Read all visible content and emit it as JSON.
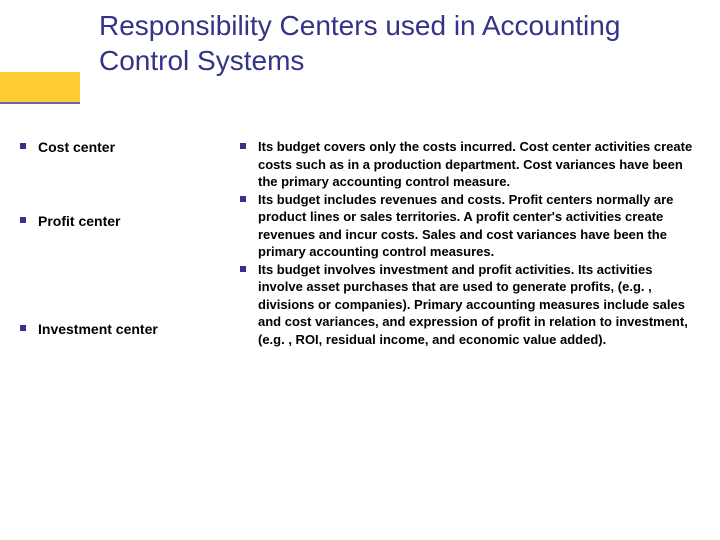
{
  "title": "Responsibility Centers used in Accounting Control Systems",
  "colors": {
    "title_color": "#333388",
    "bullet_color": "#333388",
    "accent_fill": "#ffcc33",
    "accent_underline": "#6666aa",
    "body_text": "#000000",
    "background": "#ffffff"
  },
  "typography": {
    "title_fontsize": 28,
    "left_label_fontsize": 14,
    "right_text_fontsize": 13,
    "body_weight": "bold"
  },
  "left_items": [
    {
      "label": "Cost center"
    },
    {
      "label": "Profit center"
    },
    {
      "label": "Investment center"
    }
  ],
  "right_items": [
    {
      "text": "Its budget covers only the costs incurred. Cost center activities create costs such as in a production department. Cost variances have been the primary accounting control measure."
    },
    {
      "text": "Its budget includes revenues and costs. Profit centers normally are product lines or sales territories. A profit center's activities create revenues and incur costs. Sales and cost variances have been the primary accounting control measures."
    },
    {
      "text": "Its budget involves investment and profit activities. Its activities involve asset purchases that are used to generate profits, (e.g. , divisions or companies). Primary accounting measures include sales and cost variances, and expression of profit in relation to investment, (e.g. , ROI, residual income, and economic value added)."
    }
  ]
}
